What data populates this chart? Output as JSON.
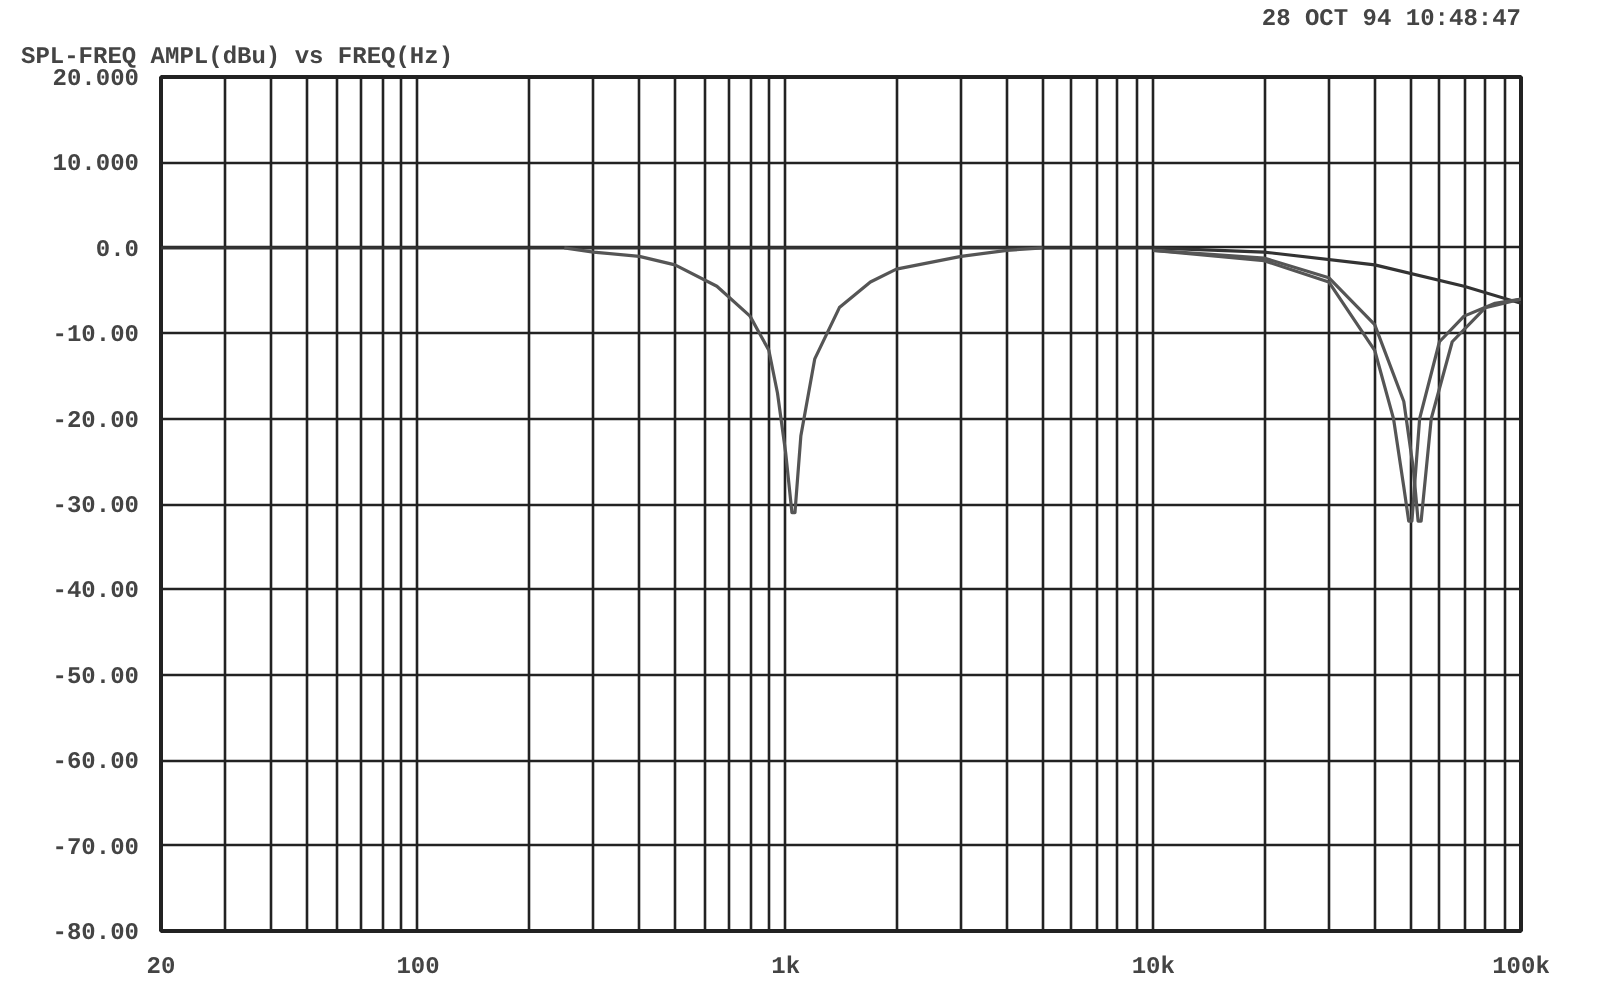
{
  "chart_data": {
    "type": "line",
    "title": "SPL-FREQ AMPL(dBu) vs FREQ(Hz)",
    "annotations": [
      "28 OCT 94 10:48:47"
    ],
    "log": "x",
    "grid": true,
    "line_style": "solid",
    "marker": "none",
    "xlim": [
      20,
      100000
    ],
    "ylim": [
      -80,
      20
    ],
    "xticks": [
      {
        "value": 20,
        "label": "20"
      },
      {
        "value": 30,
        "label": null
      },
      {
        "value": 40,
        "label": null
      },
      {
        "value": 50,
        "label": null
      },
      {
        "value": 60,
        "label": null
      },
      {
        "value": 70,
        "label": null
      },
      {
        "value": 80,
        "label": null
      },
      {
        "value": 90,
        "label": null
      },
      {
        "value": 100,
        "label": "100"
      },
      {
        "value": 200,
        "label": null
      },
      {
        "value": 300,
        "label": null
      },
      {
        "value": 400,
        "label": null
      },
      {
        "value": 500,
        "label": null
      },
      {
        "value": 600,
        "label": null
      },
      {
        "value": 700,
        "label": null
      },
      {
        "value": 800,
        "label": null
      },
      {
        "value": 900,
        "label": null
      },
      {
        "value": 1000,
        "label": "1k"
      },
      {
        "value": 2000,
        "label": null
      },
      {
        "value": 3000,
        "label": null
      },
      {
        "value": 4000,
        "label": null
      },
      {
        "value": 5000,
        "label": null
      },
      {
        "value": 6000,
        "label": null
      },
      {
        "value": 7000,
        "label": null
      },
      {
        "value": 8000,
        "label": null
      },
      {
        "value": 9000,
        "label": null
      },
      {
        "value": 10000,
        "label": "10k"
      },
      {
        "value": 20000,
        "label": null
      },
      {
        "value": 30000,
        "label": null
      },
      {
        "value": 40000,
        "label": null
      },
      {
        "value": 50000,
        "label": null
      },
      {
        "value": 60000,
        "label": null
      },
      {
        "value": 70000,
        "label": null
      },
      {
        "value": 80000,
        "label": null
      },
      {
        "value": 90000,
        "label": null
      },
      {
        "value": 100000,
        "label": "100k"
      }
    ],
    "yticks": [
      {
        "value": 20,
        "label": "20.000"
      },
      {
        "value": 10,
        "label": "10.000"
      },
      {
        "value": 0,
        "label": "0.0"
      },
      {
        "value": -10,
        "label": "-10.00"
      },
      {
        "value": -20,
        "label": "-20.00"
      },
      {
        "value": -30,
        "label": "-30.00"
      },
      {
        "value": -40,
        "label": "-40.00"
      },
      {
        "value": -50,
        "label": "-50.00"
      },
      {
        "value": -60,
        "label": "-60.00"
      },
      {
        "value": -70,
        "label": "-70.00"
      },
      {
        "value": -80,
        "label": "-80.00"
      }
    ],
    "series": [
      {
        "color": "#333333",
        "x": [
          20,
          1000,
          10000,
          20000,
          40000,
          70000,
          100000
        ],
        "values": [
          0,
          0,
          0,
          -0.5,
          -2,
          -4.5,
          -6.5
        ]
      },
      {
        "color": "#555555",
        "x": [
          250,
          300,
          400,
          500,
          650,
          800,
          900,
          950,
          1000,
          1040,
          1060,
          1100,
          1200,
          1400,
          1700,
          2000,
          3000,
          4000,
          5000
        ],
        "values": [
          0,
          -0.5,
          -1,
          -2,
          -4.5,
          -8,
          -12,
          -17,
          -24,
          -31,
          -31,
          -22,
          -13,
          -7,
          -4,
          -2.5,
          -1,
          -0.3,
          0
        ]
      },
      {
        "color": "#555555",
        "x": [
          10000,
          20000,
          30000,
          40000,
          45000,
          48000,
          49500,
          50500,
          53000,
          60000,
          70000,
          85000,
          100000
        ],
        "values": [
          -0.3,
          -1.5,
          -4,
          -12,
          -20,
          -28,
          -32,
          -32,
          -20,
          -11,
          -8,
          -6.5,
          -6
        ]
      },
      {
        "color": "#555555",
        "x": [
          10000,
          20000,
          30000,
          40000,
          48000,
          51000,
          52500,
          53500,
          57000,
          65000,
          80000,
          100000
        ],
        "values": [
          -0.3,
          -1.2,
          -3.5,
          -9,
          -18,
          -26,
          -32,
          -32,
          -20,
          -11,
          -7,
          -6
        ]
      }
    ]
  }
}
